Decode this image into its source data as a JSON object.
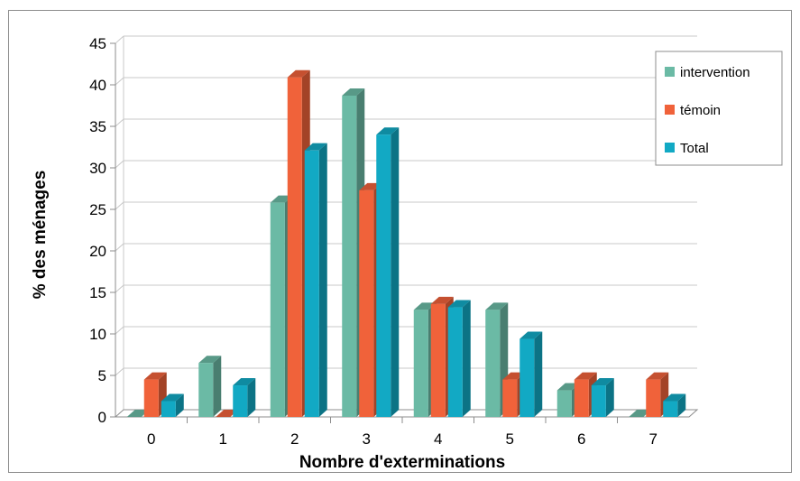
{
  "chart_data": {
    "type": "bar",
    "xlabel": "Nombre d'exterminations",
    "ylabel": "% des ménages",
    "categories": [
      "0",
      "1",
      "2",
      "3",
      "4",
      "5",
      "6",
      "7"
    ],
    "ylim": [
      0,
      45
    ],
    "yticks": [
      "0",
      "5",
      "10",
      "15",
      "20",
      "25",
      "30",
      "35",
      "40",
      "45"
    ],
    "grid": true,
    "legend_position": "top-right",
    "series": [
      {
        "name": "intervention",
        "color": "#6bbaa5",
        "values": [
          0,
          6.5,
          25.8,
          38.7,
          12.9,
          12.9,
          3.2,
          0
        ]
      },
      {
        "name": "témoin",
        "color": "#f0623a",
        "values": [
          4.5,
          0,
          40.9,
          27.3,
          13.6,
          4.5,
          4.5,
          4.5
        ]
      },
      {
        "name": "Total",
        "color": "#12a9c4",
        "values": [
          1.9,
          3.8,
          32.1,
          34.0,
          13.2,
          9.4,
          3.8,
          1.9
        ]
      }
    ]
  }
}
